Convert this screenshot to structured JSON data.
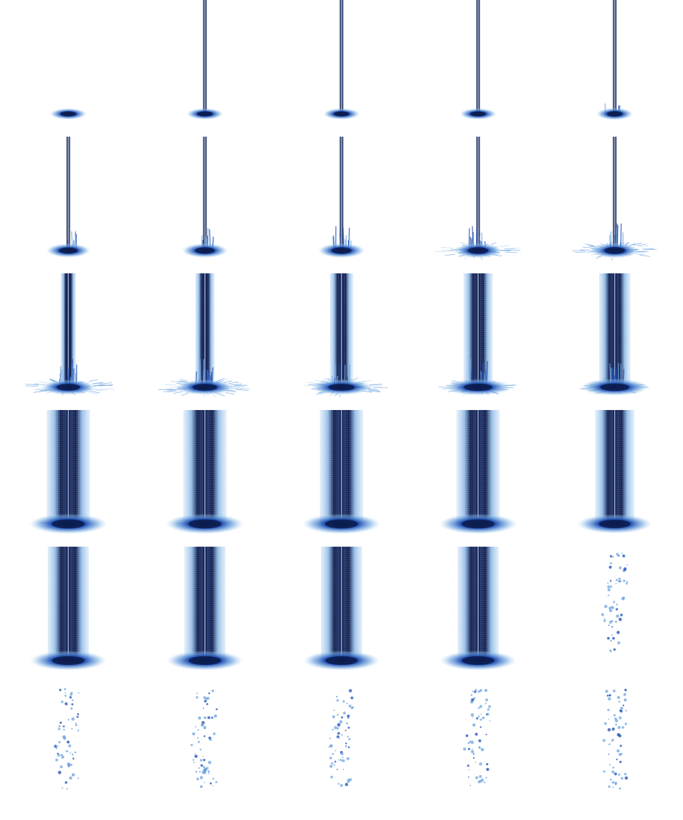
{
  "sheet": {
    "columns": 5,
    "rows": 6,
    "colors": {
      "background": "#ffffff",
      "dark": "#0b1a4a",
      "mid": "#1f4fb4",
      "light": "#6fa6e0",
      "pale": "#bcd7f2"
    }
  },
  "frames": [
    {
      "stage": "impact",
      "beam": 0,
      "column": 0,
      "splash": 0,
      "spray": 0,
      "sparkle": false
    },
    {
      "stage": "beam",
      "beam": 0.3,
      "column": 0,
      "splash": 0,
      "spray": 0,
      "sparkle": false
    },
    {
      "stage": "beam",
      "beam": 0.4,
      "column": 0,
      "splash": 0,
      "spray": 0,
      "sparkle": false
    },
    {
      "stage": "beam",
      "beam": 0.55,
      "column": 0,
      "splash": 0,
      "spray": 0,
      "sparkle": false
    },
    {
      "stage": "beam",
      "beam": 0.6,
      "column": 0,
      "splash": 0.2,
      "spray": 0,
      "sparkle": false
    },
    {
      "stage": "beam",
      "beam": 0.6,
      "column": 0,
      "splash": 0.6,
      "spray": 0,
      "sparkle": false
    },
    {
      "stage": "beam",
      "beam": 0.6,
      "column": 0,
      "splash": 0.7,
      "spray": 0,
      "sparkle": false
    },
    {
      "stage": "beam",
      "beam": 0.6,
      "column": 0,
      "splash": 0.75,
      "spray": 0,
      "sparkle": false
    },
    {
      "stage": "beam",
      "beam": 0.65,
      "column": 0,
      "splash": 0.8,
      "spray": 0.7,
      "sparkle": false
    },
    {
      "stage": "beam",
      "beam": 0.65,
      "column": 0,
      "splash": 0.85,
      "spray": 0.8,
      "sparkle": false
    },
    {
      "stage": "grow",
      "beam": 0.7,
      "column": 0.1,
      "splash": 0.9,
      "spray": 0.85,
      "sparkle": false
    },
    {
      "stage": "grow",
      "beam": 0.7,
      "column": 0.2,
      "splash": 0.9,
      "spray": 0.85,
      "sparkle": false
    },
    {
      "stage": "grow",
      "beam": 0.7,
      "column": 0.3,
      "splash": 0.9,
      "spray": 0.8,
      "sparkle": false
    },
    {
      "stage": "grow",
      "beam": 0.7,
      "column": 0.45,
      "splash": 0.9,
      "spray": 0.6,
      "sparkle": false
    },
    {
      "stage": "grow",
      "beam": 0.7,
      "column": 0.5,
      "splash": 0.9,
      "spray": 0.5,
      "sparkle": false
    },
    {
      "stage": "column",
      "beam": 0.7,
      "column": 0.8,
      "splash": 0.9,
      "spray": 0.3,
      "sparkle": false
    },
    {
      "stage": "column",
      "beam": 0.7,
      "column": 0.8,
      "splash": 0.9,
      "spray": 0.3,
      "sparkle": false
    },
    {
      "stage": "column",
      "beam": 0.7,
      "column": 0.8,
      "splash": 0.85,
      "spray": 0.2,
      "sparkle": false
    },
    {
      "stage": "column",
      "beam": 0.7,
      "column": 0.8,
      "splash": 0.8,
      "spray": 0.1,
      "sparkle": false
    },
    {
      "stage": "column",
      "beam": 0.7,
      "column": 0.7,
      "splash": 0.7,
      "spray": 0.1,
      "sparkle": false
    },
    {
      "stage": "column",
      "beam": 0.7,
      "column": 0.75,
      "splash": 0.7,
      "spray": 0,
      "sparkle": false
    },
    {
      "stage": "column",
      "beam": 0.7,
      "column": 0.75,
      "splash": 0.7,
      "spray": 0,
      "sparkle": false
    },
    {
      "stage": "column",
      "beam": 0.7,
      "column": 0.75,
      "splash": 0.7,
      "spray": 0,
      "sparkle": false
    },
    {
      "stage": "column",
      "beam": 0.7,
      "column": 0.75,
      "splash": 0.7,
      "spray": 0,
      "sparkle": false
    },
    {
      "stage": "sparkle",
      "beam": 0,
      "column": 0,
      "splash": 0,
      "spray": 0,
      "sparkle": true
    },
    {
      "stage": "sparkle",
      "beam": 0,
      "column": 0,
      "splash": 0,
      "spray": 0,
      "sparkle": true
    },
    {
      "stage": "sparkle",
      "beam": 0,
      "column": 0,
      "splash": 0,
      "spray": 0,
      "sparkle": true
    },
    {
      "stage": "sparkle",
      "beam": 0,
      "column": 0,
      "splash": 0,
      "spray": 0,
      "sparkle": true
    },
    {
      "stage": "sparkle",
      "beam": 0,
      "column": 0,
      "splash": 0,
      "spray": 0,
      "sparkle": true
    },
    {
      "stage": "sparkle",
      "beam": 0,
      "column": 0,
      "splash": 0,
      "spray": 0,
      "sparkle": true
    }
  ]
}
